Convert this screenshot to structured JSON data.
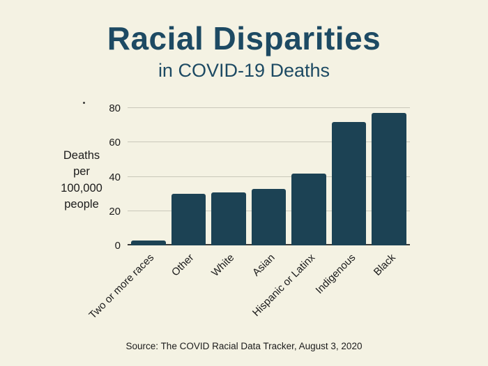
{
  "colors": {
    "background": "#f4f2e3",
    "title": "#1d4a63",
    "bar": "#1c4254",
    "grid": "#c9c8ba",
    "axis": "#3a3a38",
    "text": "#1b1b1b"
  },
  "chart_data": {
    "type": "bar",
    "title": "Racial Disparities",
    "subtitle": "in COVID-19 Deaths",
    "categories": [
      "Two or more races",
      "Other",
      "White",
      "Asian",
      "Hispanic or Latinx",
      "Indigenous",
      "Black"
    ],
    "values": [
      3,
      30,
      31,
      33,
      42,
      72,
      77
    ],
    "ylabel": "Deaths per 100,000 people",
    "ylabel_display": "Deaths\nper\n100,000\npeople",
    "yticks": [
      0,
      20,
      40,
      60,
      80
    ],
    "ylim": [
      0,
      80
    ],
    "grid": true,
    "legend": false,
    "source": "Source: The COVID Racial Data Tracker, August 3, 2020"
  }
}
